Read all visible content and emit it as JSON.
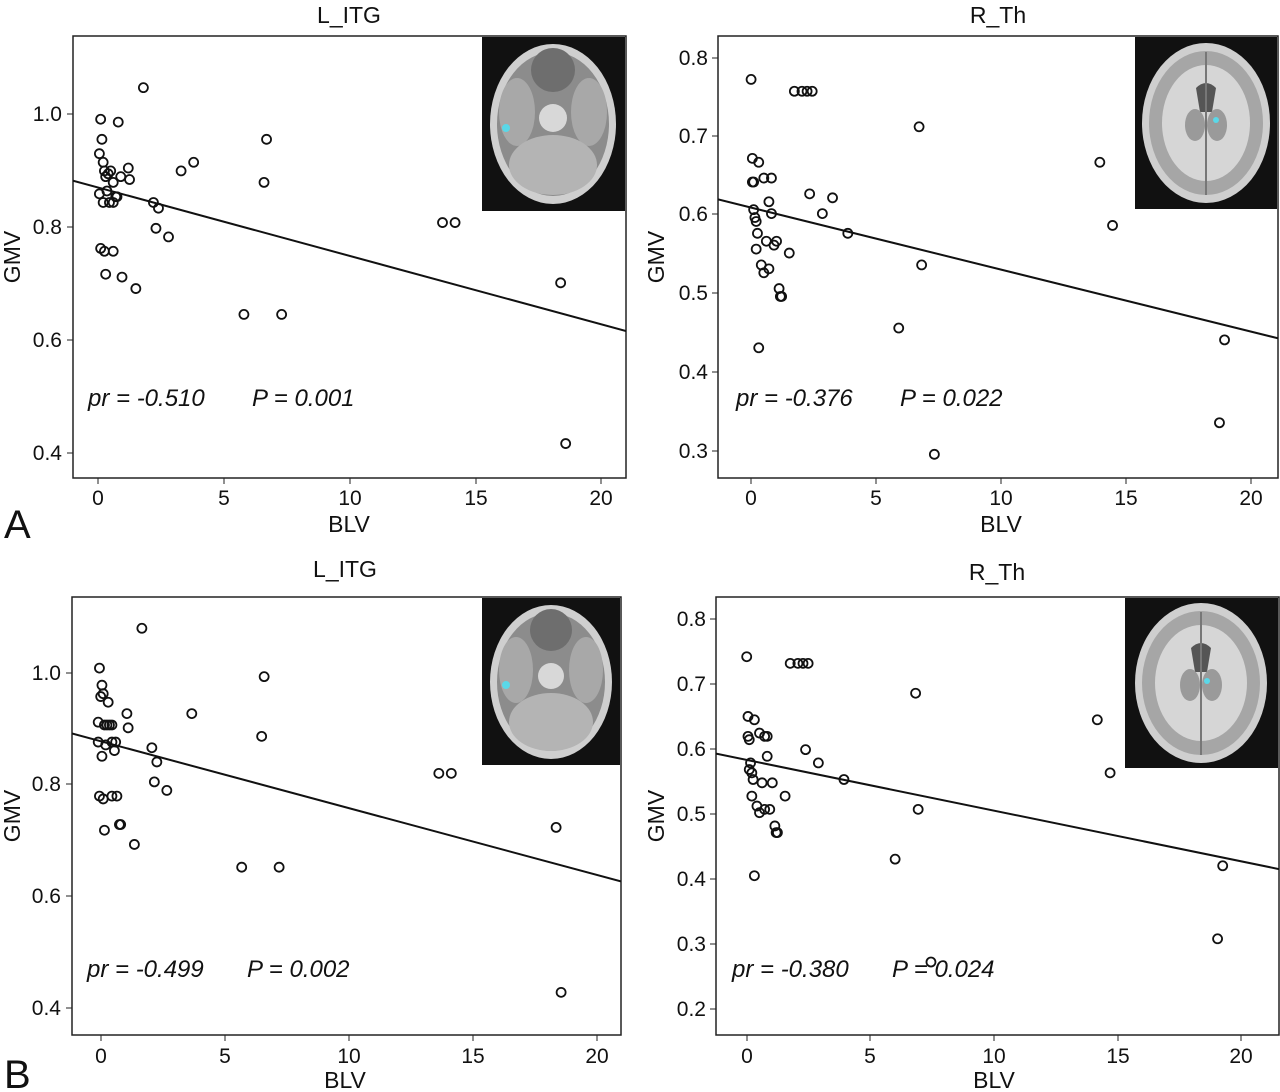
{
  "panel_labels": [
    "A",
    "B"
  ],
  "chart_data": [
    {
      "type": "scatter",
      "title": "L_ITG",
      "xlabel": "BLV",
      "ylabel": "GMV",
      "xlim": [
        -1,
        21
      ],
      "ylim": [
        0.37,
        1.14
      ],
      "xticks": [
        0,
        5,
        10,
        15,
        20
      ],
      "xtick_labels": [
        "0",
        "5",
        "10",
        "15",
        "20"
      ],
      "yticks": [
        0.4,
        0.6,
        0.8,
        1.0
      ],
      "ytick_labels": [
        "0.4",
        "0.6",
        "0.8",
        "1.0"
      ],
      "stat_r": "pr = -0.510",
      "stat_p": "P = 0.001",
      "inset": "brain-axial-temporal",
      "regression": {
        "x": [
          -1,
          21
        ],
        "y": [
          0.888,
          0.626
        ]
      },
      "x": [
        0.1,
        0.15,
        0.2,
        0.25,
        0.3,
        0.4,
        0.5,
        0.6,
        0.7,
        0.8,
        0.05,
        0.2,
        0.35,
        0.45,
        0.6,
        0.75,
        0.9,
        1.2,
        0.1,
        0.25,
        0.6,
        0.95,
        1.25,
        1.8,
        2.2,
        2.3,
        2.4,
        2.8,
        3.3,
        3.8,
        6.6,
        6.7,
        13.7,
        14.2,
        18.4,
        0.3,
        0.05,
        1.5,
        5.8,
        7.3,
        18.6
      ],
      "y": [
        0.995,
        0.96,
        0.92,
        0.905,
        0.895,
        0.9,
        0.905,
        0.885,
        0.86,
        0.99,
        0.935,
        0.85,
        0.87,
        0.85,
        0.85,
        0.86,
        0.895,
        0.91,
        0.77,
        0.765,
        0.765,
        0.72,
        0.89,
        1.05,
        0.85,
        0.805,
        0.84,
        0.79,
        0.905,
        0.92,
        0.885,
        0.96,
        0.815,
        0.815,
        0.71,
        0.725,
        0.865,
        0.7,
        0.655,
        0.655,
        0.43
      ]
    },
    {
      "type": "scatter",
      "title": "R_Th",
      "xlabel": "BLV",
      "ylabel": "GMV",
      "xlim": [
        -1.3,
        20.7
      ],
      "ylim": [
        0.27,
        0.83
      ],
      "xticks": [
        0,
        5,
        10,
        15,
        20
      ],
      "xtick_labels": [
        "0",
        "5",
        "10",
        "15",
        "20"
      ],
      "yticks": [
        0.3,
        0.4,
        0.5,
        0.6,
        0.7,
        0.8
      ],
      "ytick_labels": [
        "0.3",
        "0.4",
        "0.5",
        "0.6",
        "0.7",
        "0.8"
      ],
      "stat_r": "pr = -0.376",
      "stat_p": "P = 0.022",
      "inset": "brain-axial-thalamus",
      "regression": {
        "x": [
          -1.3,
          20.7
        ],
        "y": [
          0.623,
          0.447
        ]
      },
      "x": [
        0.0,
        0.05,
        0.1,
        0.15,
        0.2,
        0.25,
        0.3,
        0.4,
        0.5,
        0.6,
        0.7,
        0.8,
        0.9,
        1.0,
        1.1,
        1.15,
        1.2,
        1.5,
        1.7,
        2.0,
        2.2,
        2.4,
        2.3,
        2.8,
        3.2,
        3.8,
        6.6,
        6.7,
        5.8,
        7.2,
        13.7,
        14.2,
        18.4,
        18.6,
        0.1,
        0.05,
        0.3,
        0.5,
        0.7,
        0.8,
        0.2
      ],
      "y": [
        0.775,
        0.675,
        0.645,
        0.6,
        0.595,
        0.58,
        0.67,
        0.54,
        0.53,
        0.57,
        0.62,
        0.605,
        0.565,
        0.57,
        0.51,
        0.5,
        0.5,
        0.555,
        0.76,
        0.76,
        0.76,
        0.76,
        0.63,
        0.605,
        0.625,
        0.58,
        0.715,
        0.54,
        0.46,
        0.3,
        0.67,
        0.59,
        0.34,
        0.445,
        0.61,
        0.645,
        0.435,
        0.65,
        0.535,
        0.65,
        0.56
      ]
    },
    {
      "type": "scatter",
      "title": "L_ITG",
      "xlabel": "BLV",
      "ylabel": "GMV",
      "xlim": [
        -1,
        21
      ],
      "ylim": [
        0.37,
        1.14
      ],
      "xticks": [
        0,
        5,
        10,
        15,
        20
      ],
      "xtick_labels": [
        "0",
        "5",
        "10",
        "15",
        "20"
      ],
      "yticks": [
        0.4,
        0.6,
        0.8,
        1.0
      ],
      "ytick_labels": [
        "0.4",
        "0.6",
        "0.8",
        "1.0"
      ],
      "stat_r": "pr = -0.499",
      "stat_p": "P = 0.002",
      "inset": "brain-axial-temporal",
      "regression": {
        "x": [
          -1,
          21
        ],
        "y": [
          0.9,
          0.64
        ]
      },
      "x": [
        0.1,
        0.15,
        0.2,
        0.25,
        0.3,
        0.4,
        0.5,
        0.6,
        0.7,
        0.8,
        0.05,
        0.2,
        0.35,
        0.45,
        0.6,
        0.75,
        0.9,
        1.2,
        0.1,
        0.25,
        0.6,
        0.95,
        1.25,
        1.8,
        2.2,
        2.3,
        2.4,
        2.8,
        3.8,
        6.6,
        6.7,
        13.7,
        14.2,
        18.4,
        0.3,
        0.05,
        1.5,
        5.8,
        7.3,
        18.6
      ],
      "y": [
        1.015,
        0.965,
        0.985,
        0.97,
        0.915,
        0.915,
        0.915,
        0.885,
        0.87,
        0.79,
        0.92,
        0.86,
        0.88,
        0.955,
        0.79,
        0.885,
        0.74,
        0.935,
        0.79,
        0.785,
        0.915,
        0.74,
        0.91,
        1.085,
        0.875,
        0.815,
        0.85,
        0.8,
        0.935,
        0.895,
        1.0,
        0.83,
        0.83,
        0.735,
        0.73,
        0.885,
        0.705,
        0.665,
        0.665,
        0.445
      ]
    },
    {
      "type": "scatter",
      "title": "R_Th",
      "xlabel": "BLV",
      "ylabel": "GMV",
      "xlim": [
        -1.2,
        20.8
      ],
      "ylim": [
        0.18,
        0.84
      ],
      "xticks": [
        0,
        5,
        10,
        15,
        20
      ],
      "xtick_labels": [
        "0",
        "5",
        "10",
        "15",
        "20"
      ],
      "yticks": [
        0.2,
        0.3,
        0.4,
        0.5,
        0.6,
        0.7,
        0.8
      ],
      "ytick_labels": [
        "0.2",
        "0.3",
        "0.4",
        "0.5",
        "0.6",
        "0.7",
        "0.8"
      ],
      "stat_r": "pr = -0.380",
      "stat_p": "P = 0.024",
      "inset": "brain-axial-thalamus",
      "regression": {
        "x": [
          -1.2,
          20.8
        ],
        "y": [
          0.604,
          0.43
        ]
      },
      "x": [
        0.0,
        0.05,
        0.1,
        0.15,
        0.2,
        0.25,
        0.3,
        0.4,
        0.5,
        0.6,
        0.7,
        0.8,
        0.9,
        1.0,
        1.1,
        1.15,
        1.2,
        1.5,
        1.7,
        2.0,
        2.2,
        2.4,
        2.3,
        2.8,
        3.8,
        6.6,
        6.7,
        5.8,
        7.2,
        13.7,
        14.2,
        18.4,
        18.6,
        0.1,
        0.05,
        0.3,
        0.5,
        0.7,
        0.8,
        0.2
      ],
      "y": [
        0.75,
        0.66,
        0.625,
        0.59,
        0.575,
        0.565,
        0.655,
        0.525,
        0.515,
        0.56,
        0.63,
        0.6,
        0.52,
        0.56,
        0.495,
        0.485,
        0.485,
        0.54,
        0.74,
        0.74,
        0.74,
        0.74,
        0.61,
        0.59,
        0.565,
        0.695,
        0.52,
        0.445,
        0.29,
        0.655,
        0.575,
        0.325,
        0.435,
        0.58,
        0.63,
        0.42,
        0.635,
        0.52,
        0.63,
        0.54
      ]
    }
  ]
}
